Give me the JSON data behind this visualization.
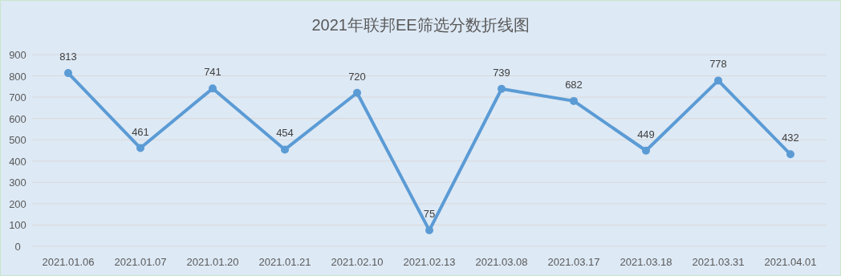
{
  "chart_data": {
    "type": "line",
    "title": "2021年联邦EE筛选分数折线图",
    "categories": [
      "2021.01.06",
      "2021.01.07",
      "2021.01.20",
      "2021.01.21",
      "2021.02.10",
      "2021.02.13",
      "2021.03.08",
      "2021.03.17",
      "2021.03.18",
      "2021.03.31",
      "2021.04.01"
    ],
    "series": [
      {
        "color": "#5b9bd5",
        "values": [
          813,
          461,
          741,
          454,
          720,
          75,
          739,
          682,
          449,
          778,
          432
        ]
      }
    ],
    "ylim": [
      0,
      900
    ],
    "yticks": [
      0,
      100,
      200,
      300,
      400,
      500,
      600,
      700,
      800,
      900
    ],
    "grid": "y",
    "marker": "circle",
    "data_labels": true
  }
}
